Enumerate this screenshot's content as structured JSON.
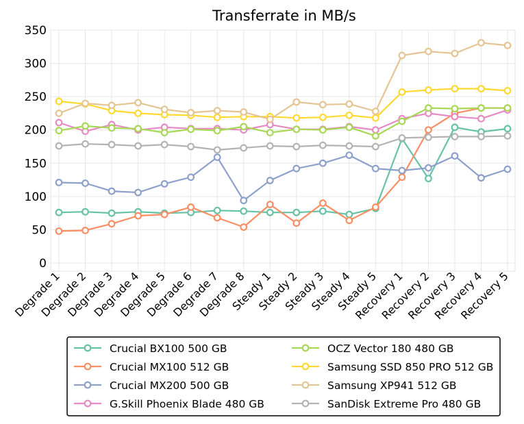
{
  "chart_data": {
    "type": "line",
    "title": "Transferrate in MB/s",
    "xlabel": "",
    "ylabel": "",
    "ylim": [
      0,
      350
    ],
    "yticks": [
      0,
      50,
      100,
      150,
      200,
      250,
      300,
      350
    ],
    "grid": true,
    "legend_position": "bottom",
    "categories": [
      "Degrade 1",
      "Degrade 2",
      "Degrade 3",
      "Degrade 4",
      "Degrade 5",
      "Degrade 6",
      "Degrade 7",
      "Degrade 8",
      "Steady 1",
      "Steady 2",
      "Steady 3",
      "Steady 4",
      "Steady 5",
      "Recovery 1",
      "Recovery 2",
      "Recovery 3",
      "Recovery 4",
      "Recovery 5"
    ],
    "series": [
      {
        "name": "Crucial BX100 500 GB",
        "color": "#66c2a5",
        "values": [
          76,
          77,
          75,
          77,
          75,
          76,
          79,
          78,
          76,
          76,
          78,
          73,
          82,
          187,
          127,
          204,
          197,
          202
        ]
      },
      {
        "name": "Crucial MX100 512 GB",
        "color": "#fc8d62",
        "values": [
          48,
          49,
          59,
          71,
          73,
          84,
          68,
          54,
          88,
          60,
          90,
          64,
          84,
          129,
          200,
          225,
          233,
          233
        ]
      },
      {
        "name": "Crucial MX200 500 GB",
        "color": "#8da0cb",
        "values": [
          121,
          120,
          108,
          106,
          119,
          129,
          159,
          94,
          124,
          142,
          150,
          162,
          142,
          139,
          143,
          161,
          128,
          141
        ]
      },
      {
        "name": "G.Skill Phoenix Blade 480 GB",
        "color": "#e78ac3",
        "values": [
          211,
          198,
          208,
          200,
          204,
          202,
          202,
          200,
          208,
          201,
          201,
          205,
          200,
          217,
          225,
          220,
          217,
          230
        ]
      },
      {
        "name": "OCZ Vector 180 480 GB",
        "color": "#a6d854",
        "values": [
          199,
          206,
          203,
          202,
          196,
          201,
          199,
          205,
          196,
          201,
          200,
          204,
          191,
          213,
          233,
          232,
          233,
          233
        ]
      },
      {
        "name": "Samsung SSD 850 PRO 512 GB",
        "color": "#ffd92f",
        "values": [
          243,
          239,
          229,
          225,
          223,
          222,
          219,
          220,
          220,
          218,
          219,
          222,
          218,
          257,
          260,
          262,
          262,
          259
        ]
      },
      {
        "name": "Samsung XP941 512 GB",
        "color": "#e5c494",
        "values": [
          225,
          240,
          237,
          241,
          231,
          226,
          229,
          227,
          216,
          242,
          238,
          239,
          228,
          312,
          318,
          315,
          331,
          327
        ]
      },
      {
        "name": "SanDisk Extreme Pro 480 GB",
        "color": "#b3b3b3",
        "values": [
          176,
          179,
          178,
          176,
          178,
          175,
          170,
          173,
          176,
          175,
          177,
          176,
          175,
          188,
          189,
          190,
          190,
          191
        ]
      }
    ]
  }
}
